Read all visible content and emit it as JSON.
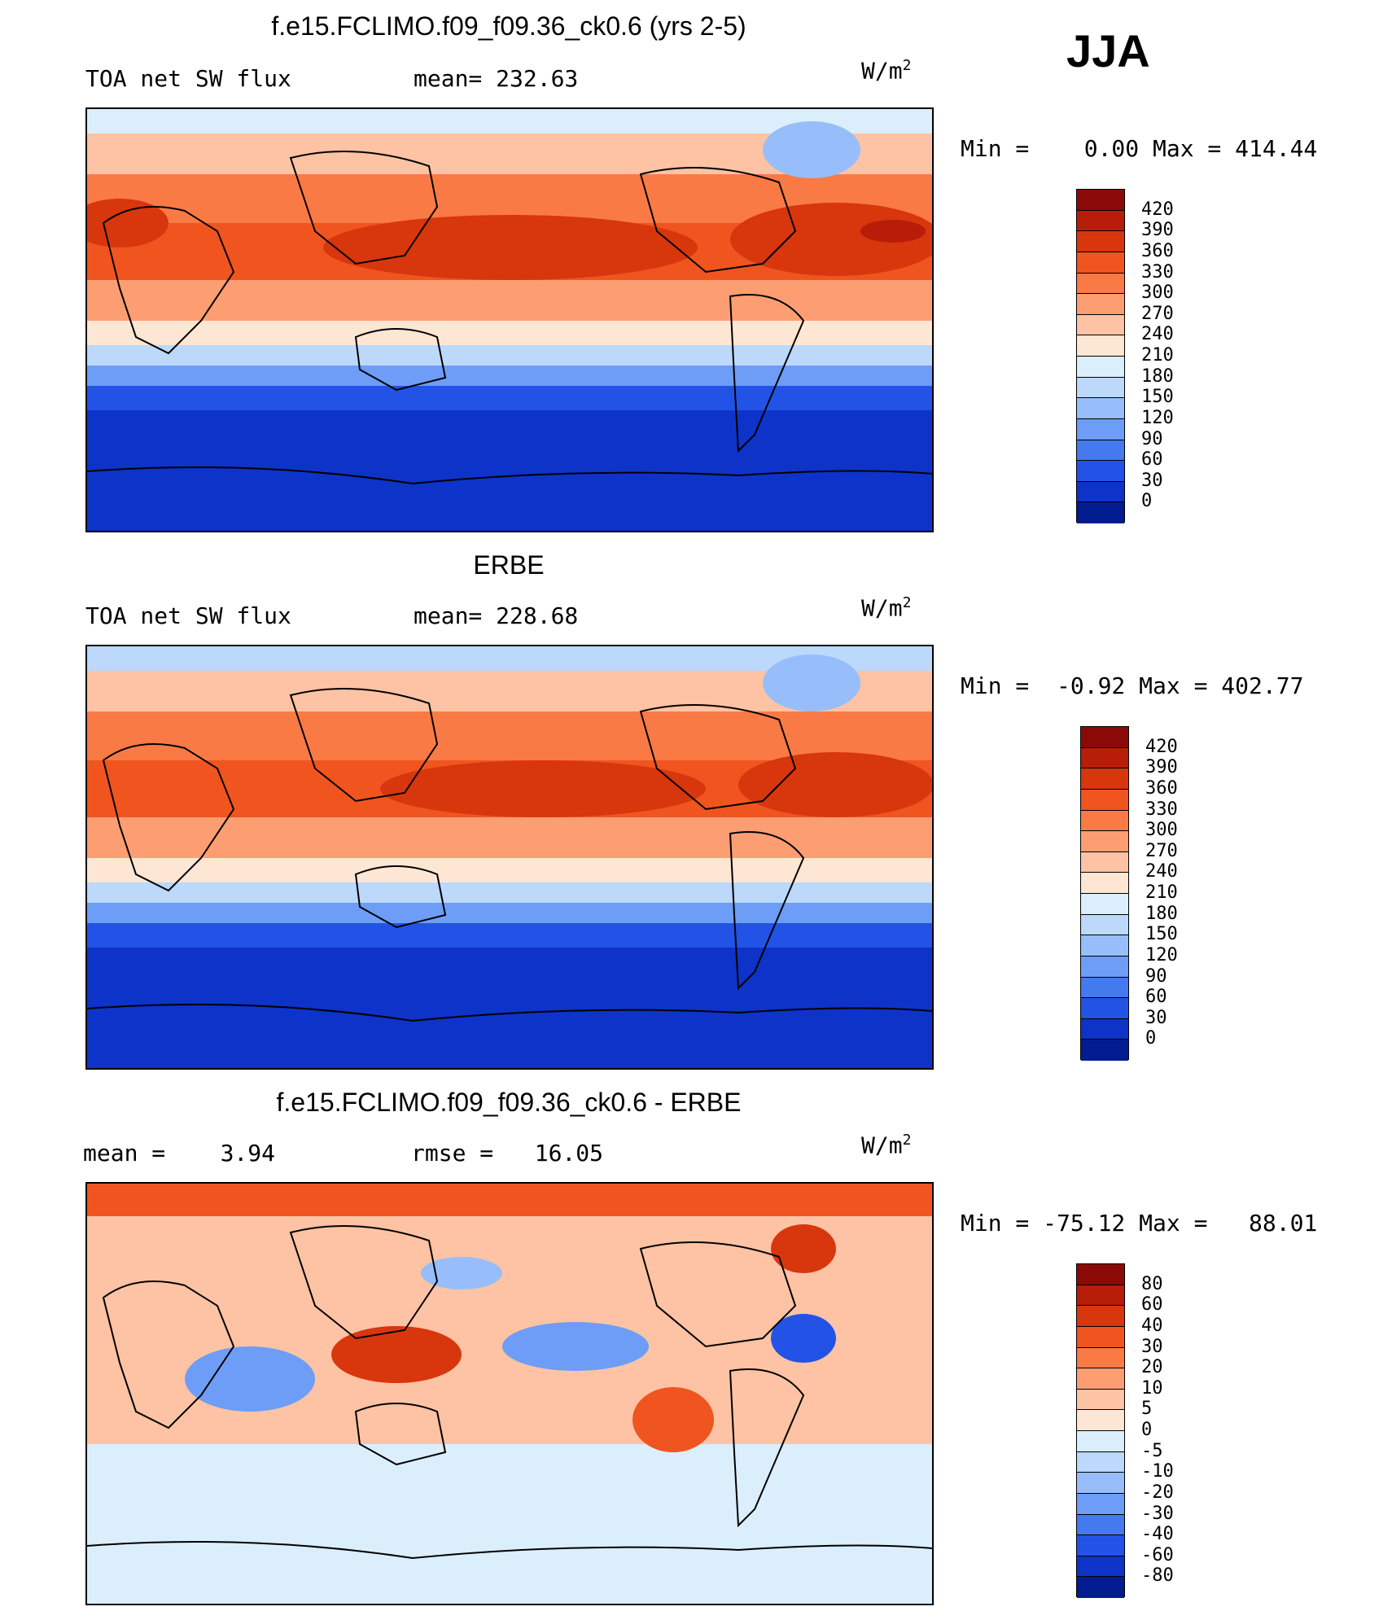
{
  "season": "JJA",
  "units": {
    "base": "W/m",
    "sup": "2"
  },
  "panels": [
    {
      "title": "f.e15.FCLIMO.f09_f09.36_ck0.6 (yrs 2-5)",
      "left_label": "TOA net SW flux",
      "mid_label": "mean= 232.63",
      "minmax": "Min =    0.00 Max = 414.44",
      "colorbar": {
        "ticks": [
          "420",
          "390",
          "360",
          "330",
          "300",
          "270",
          "240",
          "210",
          "180",
          "150",
          "120",
          "90",
          "60",
          "30",
          "0"
        ],
        "colors": [
          "#8b0a07",
          "#b81d0a",
          "#d8360d",
          "#f0551f",
          "#fa7a45",
          "#fc9e72",
          "#fdc3a4",
          "#fee6d4",
          "#dbeefb",
          "#bcd8fa",
          "#97befa",
          "#6d9df6",
          "#4479f0",
          "#2253e6",
          "#0d33c8",
          "#001c8e"
        ]
      }
    },
    {
      "title": "ERBE",
      "left_label": "TOA net SW flux",
      "mid_label": "mean= 228.68",
      "minmax": "Min =  -0.92 Max = 402.77",
      "colorbar": {
        "ticks": [
          "420",
          "390",
          "360",
          "330",
          "300",
          "270",
          "240",
          "210",
          "180",
          "150",
          "120",
          "90",
          "60",
          "30",
          "0"
        ],
        "colors": [
          "#8b0a07",
          "#b81d0a",
          "#d8360d",
          "#f0551f",
          "#fa7a45",
          "#fc9e72",
          "#fdc3a4",
          "#fee6d4",
          "#dbeefb",
          "#bcd8fa",
          "#97befa",
          "#6d9df6",
          "#4479f0",
          "#2253e6",
          "#0d33c8",
          "#001c8e"
        ]
      }
    },
    {
      "title": "f.e15.FCLIMO.f09_f09.36_ck0.6 - ERBE",
      "left_label": "mean =    3.94",
      "mid_label": "rmse =   16.05",
      "minmax": "Min = -75.12 Max =   88.01",
      "colorbar": {
        "ticks": [
          "80",
          "60",
          "40",
          "30",
          "20",
          "10",
          "5",
          "0",
          "-5",
          "-10",
          "-20",
          "-30",
          "-40",
          "-60",
          "-80"
        ],
        "colors": [
          "#8b0a07",
          "#b81d0a",
          "#d8360d",
          "#f0551f",
          "#fa7a45",
          "#fc9e72",
          "#fdc3a4",
          "#fee6d4",
          "#dbeefb",
          "#bcd8fa",
          "#97befa",
          "#6d9df6",
          "#4479f0",
          "#2253e6",
          "#0d33c8",
          "#001c8e"
        ]
      }
    }
  ],
  "map_colors": {
    "arctic": "#dbeefb",
    "high_north": "#fdc3a4",
    "mid_north": "#fa7a45",
    "subtropic_high": "#d8360d",
    "tropics": "#fc9e72",
    "south_sub": "#fee6d4",
    "south_mid1": "#bcd8fa",
    "south_mid2": "#6d9df6",
    "south_mid3": "#2253e6",
    "antarctic": "#0d33c8",
    "diff_base": "#fdc3a4",
    "diff_pos": "#f0551f",
    "diff_neg": "#6d9df6",
    "coast": "#000000"
  }
}
